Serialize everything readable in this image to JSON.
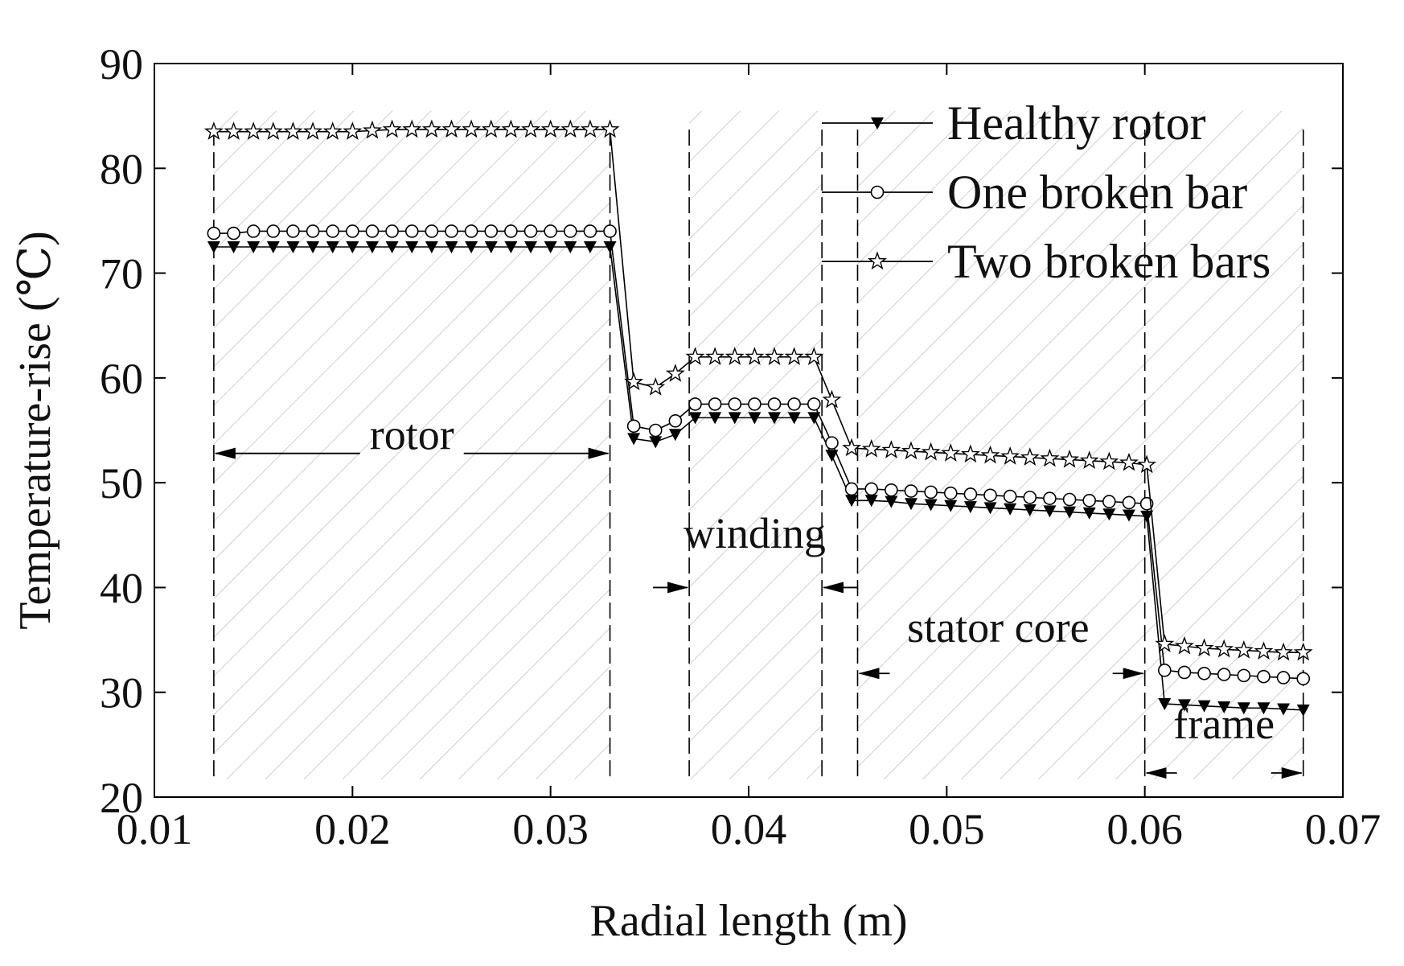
{
  "chart_data": {
    "type": "line",
    "title": "",
    "xlabel": "Radial length (m)",
    "ylabel": "Temperature-rise (℃)",
    "xlim": [
      0.01,
      0.07
    ],
    "ylim": [
      20,
      90
    ],
    "xticks": [
      0.01,
      0.02,
      0.03,
      0.04,
      0.05,
      0.06,
      0.07
    ],
    "xtick_labels": [
      "0.01",
      "0.02",
      "0.03",
      "0.04",
      "0.05",
      "0.06",
      "0.07"
    ],
    "yticks": [
      20,
      30,
      40,
      50,
      60,
      70,
      80,
      90
    ],
    "ytick_labels": [
      "20",
      "30",
      "40",
      "50",
      "60",
      "70",
      "80",
      "90"
    ],
    "grid": false,
    "legend_position": "top-right",
    "series": [
      {
        "name": "Healthy rotor",
        "marker": "filled-triangle-down",
        "x": [
          0.013,
          0.014,
          0.015,
          0.016,
          0.017,
          0.018,
          0.019,
          0.02,
          0.021,
          0.022,
          0.023,
          0.024,
          0.025,
          0.026,
          0.027,
          0.028,
          0.029,
          0.03,
          0.031,
          0.032,
          0.033,
          0.0342,
          0.0353,
          0.0363,
          0.0373,
          0.0383,
          0.0393,
          0.0403,
          0.0413,
          0.0423,
          0.0433,
          0.0442,
          0.0452,
          0.0462,
          0.0472,
          0.0482,
          0.0492,
          0.0502,
          0.0512,
          0.0522,
          0.0532,
          0.0542,
          0.0552,
          0.0562,
          0.0572,
          0.0582,
          0.0592,
          0.0601,
          0.061,
          0.062,
          0.063,
          0.064,
          0.065,
          0.066,
          0.067,
          0.068
        ],
        "y": [
          72.5,
          72.5,
          72.5,
          72.5,
          72.5,
          72.5,
          72.5,
          72.5,
          72.5,
          72.5,
          72.5,
          72.5,
          72.5,
          72.5,
          72.5,
          72.5,
          72.5,
          72.5,
          72.5,
          72.5,
          72.5,
          54.2,
          53.9,
          54.6,
          56.2,
          56.2,
          56.2,
          56.2,
          56.2,
          56.2,
          56.2,
          52.6,
          48.3,
          48.3,
          48.2,
          48.0,
          47.9,
          47.8,
          47.7,
          47.6,
          47.5,
          47.4,
          47.3,
          47.2,
          47.1,
          47.0,
          46.9,
          46.8,
          28.9,
          28.8,
          28.7,
          28.6,
          28.5,
          28.5,
          28.4,
          28.3
        ]
      },
      {
        "name": "One broken bar",
        "marker": "open-circle",
        "x": [
          0.013,
          0.014,
          0.015,
          0.016,
          0.017,
          0.018,
          0.019,
          0.02,
          0.021,
          0.022,
          0.023,
          0.024,
          0.025,
          0.026,
          0.027,
          0.028,
          0.029,
          0.03,
          0.031,
          0.032,
          0.033,
          0.0342,
          0.0353,
          0.0363,
          0.0373,
          0.0383,
          0.0393,
          0.0403,
          0.0413,
          0.0423,
          0.0433,
          0.0442,
          0.0452,
          0.0462,
          0.0472,
          0.0482,
          0.0492,
          0.0502,
          0.0512,
          0.0522,
          0.0532,
          0.0542,
          0.0552,
          0.0562,
          0.0572,
          0.0582,
          0.0592,
          0.0601,
          0.061,
          0.062,
          0.063,
          0.064,
          0.065,
          0.066,
          0.067,
          0.068
        ],
        "y": [
          73.8,
          73.8,
          74.0,
          74.0,
          74.0,
          74.0,
          74.0,
          74.0,
          74.0,
          74.0,
          74.0,
          74.0,
          74.0,
          74.0,
          74.0,
          74.0,
          74.0,
          74.0,
          74.0,
          74.0,
          74.0,
          55.4,
          55.0,
          55.9,
          57.5,
          57.5,
          57.5,
          57.5,
          57.5,
          57.5,
          57.5,
          53.8,
          49.4,
          49.4,
          49.3,
          49.2,
          49.1,
          49.0,
          48.9,
          48.8,
          48.7,
          48.6,
          48.5,
          48.4,
          48.3,
          48.2,
          48.1,
          48.0,
          32.1,
          31.9,
          31.8,
          31.7,
          31.6,
          31.5,
          31.4,
          31.3
        ]
      },
      {
        "name": "Two broken bars",
        "marker": "open-star",
        "x": [
          0.013,
          0.014,
          0.015,
          0.016,
          0.017,
          0.018,
          0.019,
          0.02,
          0.021,
          0.022,
          0.023,
          0.024,
          0.025,
          0.026,
          0.027,
          0.028,
          0.029,
          0.03,
          0.031,
          0.032,
          0.033,
          0.0342,
          0.0353,
          0.0363,
          0.0373,
          0.0383,
          0.0393,
          0.0403,
          0.0413,
          0.0423,
          0.0433,
          0.0442,
          0.0452,
          0.0462,
          0.0472,
          0.0482,
          0.0492,
          0.0502,
          0.0512,
          0.0522,
          0.0532,
          0.0542,
          0.0552,
          0.0562,
          0.0572,
          0.0582,
          0.0592,
          0.0601,
          0.061,
          0.062,
          0.063,
          0.064,
          0.065,
          0.066,
          0.067,
          0.068
        ],
        "y": [
          83.5,
          83.5,
          83.5,
          83.5,
          83.5,
          83.5,
          83.5,
          83.5,
          83.6,
          83.7,
          83.7,
          83.7,
          83.7,
          83.7,
          83.7,
          83.7,
          83.7,
          83.7,
          83.7,
          83.7,
          83.7,
          59.6,
          59.1,
          60.4,
          62.0,
          62.0,
          62.0,
          62.0,
          62.0,
          62.0,
          62.0,
          57.9,
          53.3,
          53.2,
          53.1,
          53.0,
          52.9,
          52.8,
          52.7,
          52.6,
          52.5,
          52.4,
          52.3,
          52.2,
          52.1,
          52.0,
          51.9,
          51.7,
          34.6,
          34.4,
          34.2,
          34.1,
          34.0,
          33.9,
          33.8,
          33.8
        ]
      }
    ],
    "regions": [
      {
        "label": "rotor",
        "x_start": 0.013,
        "x_end": 0.033,
        "label_x": 0.023,
        "label_y": 53.2,
        "arrow_y": 52.8,
        "arrow_style": "inward"
      },
      {
        "label": "winding",
        "x_start": 0.037,
        "x_end": 0.0437,
        "label_x": 0.0403,
        "label_y": 43.8,
        "arrow_y": 40.0,
        "arrow_style": "outward"
      },
      {
        "label": "stator core",
        "x_start": 0.0455,
        "x_end": 0.06,
        "label_x": 0.0526,
        "label_y": 34.8,
        "arrow_y": 31.8,
        "arrow_style": "inward"
      },
      {
        "label": "frame",
        "x_start": 0.06,
        "x_end": 0.068,
        "label_x": 0.064,
        "label_y": 25.6,
        "arrow_y": 22.3,
        "arrow_style": "inward"
      }
    ]
  }
}
